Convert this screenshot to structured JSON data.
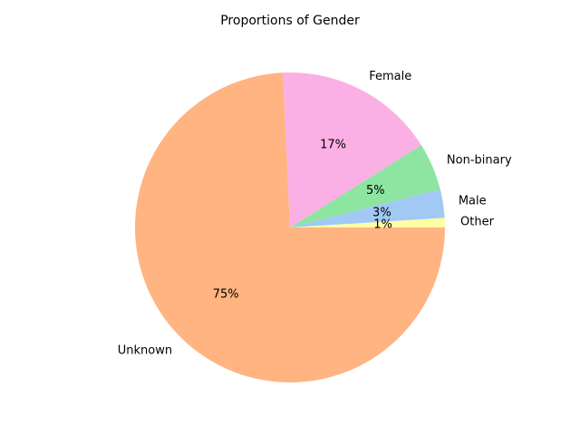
{
  "chart_data": {
    "type": "pie",
    "title": "Proportions of Gender",
    "slices": [
      {
        "label": "Other",
        "value": 1,
        "pct_label": "1%",
        "color": "#fffea3"
      },
      {
        "label": "Male",
        "value": 3,
        "pct_label": "3%",
        "color": "#a1c9f4"
      },
      {
        "label": "Non-binary",
        "value": 5,
        "pct_label": "5%",
        "color": "#8de5a1"
      },
      {
        "label": "Female",
        "value": 17,
        "pct_label": "17%",
        "color": "#fab0e4"
      },
      {
        "label": "Unknown",
        "value": 75,
        "pct_label": "75%",
        "color": "#ffb482"
      }
    ]
  }
}
